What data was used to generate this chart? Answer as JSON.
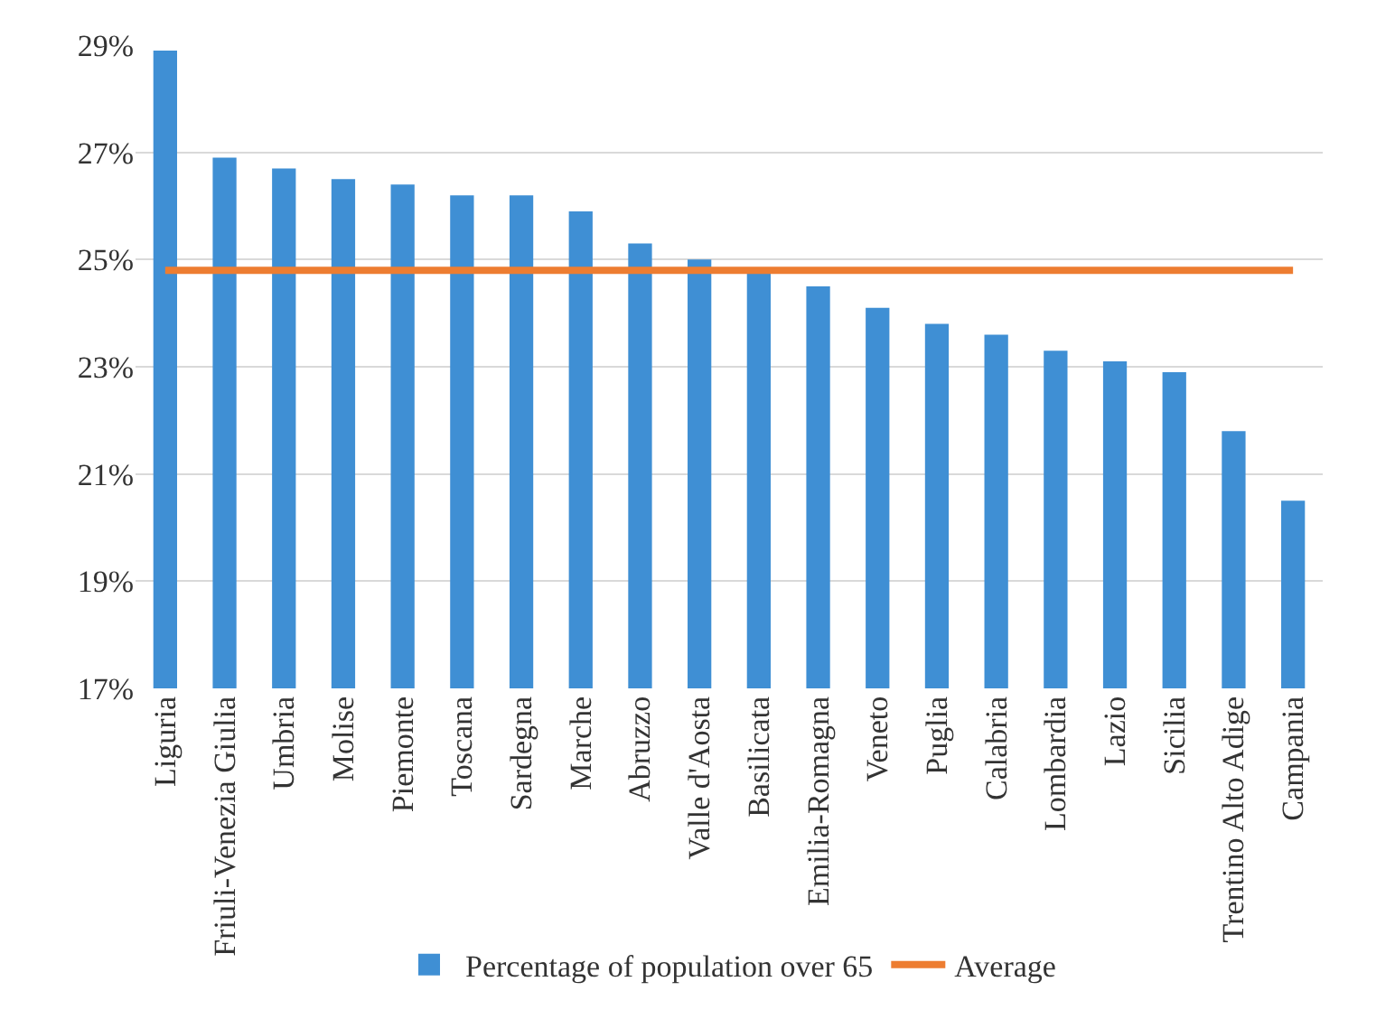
{
  "chart_data": {
    "type": "bar",
    "categories": [
      "Liguria",
      "Friuli-Venezia Giulia",
      "Umbria",
      "Molise",
      "Piemonte",
      "Toscana",
      "Sardegna",
      "Marche",
      "Abruzzo",
      "Valle d'Aosta",
      "Basilicata",
      "Emilia-Romagna",
      "Veneto",
      "Puglia",
      "Calabria",
      "Lombardia",
      "Lazio",
      "Sicilia",
      "Trentino Alto Adige",
      "Campania"
    ],
    "series": [
      {
        "name": "Percentage of population over 65",
        "color": "#3f8fd4",
        "values": [
          28.9,
          26.9,
          26.7,
          26.5,
          26.4,
          26.2,
          26.2,
          25.9,
          25.3,
          25.0,
          24.8,
          24.5,
          24.1,
          23.8,
          23.6,
          23.3,
          23.1,
          22.9,
          21.8,
          20.5
        ]
      },
      {
        "name": "Average",
        "type": "line",
        "color": "#ed7d31",
        "values": [
          24.8,
          24.8,
          24.8,
          24.8,
          24.8,
          24.8,
          24.8,
          24.8,
          24.8,
          24.8,
          24.8,
          24.8,
          24.8,
          24.8,
          24.8,
          24.8,
          24.8,
          24.8,
          24.8,
          24.8
        ]
      }
    ],
    "ylim": [
      17,
      29
    ],
    "yticks": [
      {
        "value": 17,
        "label": "17%"
      },
      {
        "value": 19,
        "label": "19%"
      },
      {
        "value": 21,
        "label": "21%"
      },
      {
        "value": 23,
        "label": "23%"
      },
      {
        "value": 25,
        "label": "25%"
      },
      {
        "value": 27,
        "label": "27%"
      },
      {
        "value": 29,
        "label": "29%"
      }
    ],
    "grid": "y",
    "legend": "bottom",
    "marker": "none",
    "line_style": "solid"
  }
}
